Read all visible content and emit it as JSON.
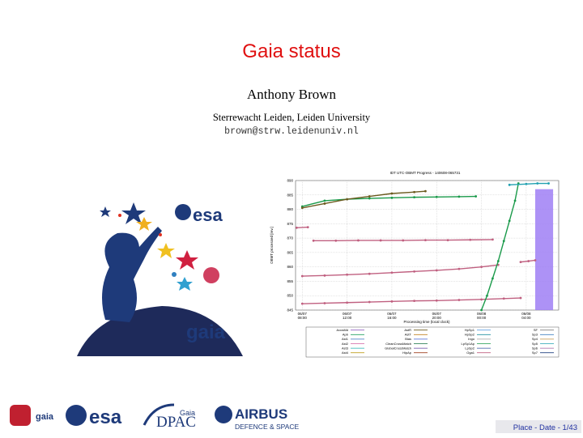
{
  "slide": {
    "title": "Gaia status",
    "author": "Anthony Brown",
    "affiliation": "Sterrewacht Leiden, Leiden University",
    "email": "brown@strw.leidenuniv.nl",
    "footer": "Place - Date - 1/43"
  },
  "logos": {
    "esa": "esa",
    "gaia": "gaia",
    "footer_gaia": "gaia",
    "footer_esa": "esa",
    "dpac_top": "Gaia",
    "dpac": "DPAC",
    "airbus": "AIRBUS",
    "airbus_sub": "DEFENCE & SPACE"
  },
  "chart_data": {
    "type": "scatter",
    "title": "IDT UTC-OBMT Progress - 140608-065731",
    "x_label": "Processing time (local clock)",
    "y_label": "OBMT processed [rev.]",
    "xlim": [
      7.4,
      30.9
    ],
    "ylim": [
      845,
      890
    ],
    "xticks": [
      {
        "value": 8,
        "label": "06/07 08:00"
      },
      {
        "value": 12,
        "label": "06/07 12:00"
      },
      {
        "value": 16,
        "label": "06/07 16:00"
      },
      {
        "value": 20,
        "label": "06/07 20:00"
      },
      {
        "value": 24,
        "label": "06/08 00:00"
      },
      {
        "value": 28,
        "label": "06/08 04:00"
      }
    ],
    "yticks": [
      845,
      850,
      855,
      860,
      865,
      870,
      875,
      880,
      885,
      890
    ],
    "grid": true,
    "traces": [
      {
        "color": "#c06080",
        "x": [
          8,
          10,
          12,
          14,
          16,
          18,
          20,
          22,
          24,
          26,
          27.5
        ],
        "values": [
          847.2,
          847.4,
          847.6,
          847.8,
          848,
          848.2,
          848.3,
          848.5,
          848.7,
          849,
          849.2
        ]
      },
      {
        "color": "#c06080",
        "x": [
          8,
          10,
          12,
          14,
          16,
          18,
          20,
          22,
          24,
          25.5
        ],
        "values": [
          856.8,
          857,
          857.3,
          857.6,
          858,
          858.4,
          858.8,
          859.3,
          860,
          860.7
        ]
      },
      {
        "color": "#c06080",
        "x": [
          9,
          11,
          13,
          15,
          17,
          19,
          21,
          23,
          25
        ],
        "values": [
          869.1,
          869.1,
          869.2,
          869.2,
          869.2,
          869.3,
          869.3,
          869.4,
          869.5
        ]
      },
      {
        "color": "#c06080",
        "x": [
          7.5,
          8.5
        ],
        "values": [
          873.6,
          873.8
        ]
      },
      {
        "color": "#c06080",
        "x": [
          27.5,
          28.2,
          28.8
        ],
        "values": [
          861.7,
          862,
          862.3
        ]
      },
      {
        "color": "#1a9a4a",
        "x": [
          24,
          24.5,
          25,
          25.5,
          26,
          26.5,
          27,
          27.3
        ],
        "values": [
          845,
          850,
          856,
          862,
          869,
          876,
          883,
          889
        ]
      },
      {
        "color": "#1a9a4a",
        "x": [
          8,
          10,
          12,
          14,
          16,
          18,
          20,
          22,
          23.5
        ],
        "values": [
          881,
          883,
          883.5,
          883.8,
          884,
          884.2,
          884.3,
          884.4,
          884.5
        ]
      },
      {
        "color": "#6b5a1e",
        "x": [
          8,
          10,
          12,
          14,
          16,
          18,
          19
        ],
        "values": [
          880.5,
          882,
          883.5,
          884.5,
          885.5,
          886,
          886.3
        ]
      },
      {
        "color": "#20a0b0",
        "x": [
          26.5,
          28,
          29,
          30
        ],
        "values": [
          888.5,
          888.8,
          889,
          889
        ]
      }
    ],
    "band": {
      "color": "#9f7ff5",
      "x": [
        28.8,
        30.4
      ],
      "values": [
        845,
        887
      ]
    },
    "legend": [
      {
        "name": "AocsMd",
        "color": "#9060c0"
      },
      {
        "name": "Apb",
        "color": "#20a060"
      },
      {
        "name": "Ast1",
        "color": "#3070c0"
      },
      {
        "name": "Ast2",
        "color": "#d060a0"
      },
      {
        "name": "Ast3",
        "color": "#20b0b0"
      },
      {
        "name": "Ast4",
        "color": "#c0a020"
      },
      {
        "name": "AstR",
        "color": "#6b5a1e"
      },
      {
        "name": "AstT",
        "color": "#c08020"
      },
      {
        "name": "Bias",
        "color": "#4060d0"
      },
      {
        "name": "CleanCrossMatch",
        "color": "#107040"
      },
      {
        "name": "GlobalCrossMatch",
        "color": "#6040a0"
      },
      {
        "name": "HipAp",
        "color": "#a04020"
      },
      {
        "name": "HpSp1",
        "color": "#60a0e0"
      },
      {
        "name": "HpSp2",
        "color": "#2090a0"
      },
      {
        "name": "Ingo",
        "color": "#a0a0a0"
      },
      {
        "name": "LpSp1Ap",
        "color": "#1a9a4a"
      },
      {
        "name": "LpSp2",
        "color": "#3050a0"
      },
      {
        "name": "Oga1",
        "color": "#c06080"
      },
      {
        "name": "SF",
        "color": "#808080"
      },
      {
        "name": "Sp3",
        "color": "#4080c0"
      },
      {
        "name": "Sp4",
        "color": "#c09040"
      },
      {
        "name": "Sp5",
        "color": "#20a0b0"
      },
      {
        "name": "Sp6",
        "color": "#a060a0"
      },
      {
        "name": "Sp7",
        "color": "#204080"
      }
    ]
  }
}
